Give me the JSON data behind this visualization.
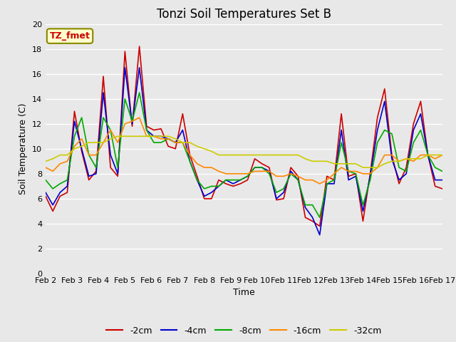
{
  "title": "Tonzi Soil Temperatures Set B",
  "xlabel": "Time",
  "ylabel": "Soil Temperature (C)",
  "annotation": "TZ_fmet",
  "ylim": [
    0,
    20
  ],
  "yticks": [
    0,
    2,
    4,
    6,
    8,
    10,
    12,
    14,
    16,
    18,
    20
  ],
  "x_labels": [
    "Feb 2",
    "Feb 3",
    "Feb 4",
    "Feb 5",
    "Feb 6",
    "Feb 7",
    "Feb 8",
    "Feb 9",
    "Feb 10",
    "Feb 11",
    "Feb 12",
    "Feb 13",
    "Feb 14",
    "Feb 15",
    "Feb 16",
    "Feb 17"
  ],
  "series_order": [
    "-2cm",
    "-4cm",
    "-8cm",
    "-16cm",
    "-32cm"
  ],
  "series": {
    "-2cm": {
      "color": "#cc0000",
      "lw": 1.2
    },
    "-4cm": {
      "color": "#0000cc",
      "lw": 1.2
    },
    "-8cm": {
      "color": "#00aa00",
      "lw": 1.2
    },
    "-16cm": {
      "color": "#ff8800",
      "lw": 1.2
    },
    "-32cm": {
      "color": "#cccc00",
      "lw": 1.2
    }
  },
  "data": {
    "-2cm": [
      6.2,
      5.0,
      6.2,
      6.5,
      13.0,
      9.8,
      7.5,
      8.2,
      15.8,
      8.5,
      7.8,
      17.8,
      11.8,
      18.2,
      11.8,
      11.5,
      11.6,
      10.2,
      10.0,
      12.8,
      9.5,
      7.8,
      6.0,
      6.0,
      7.5,
      7.2,
      7.0,
      7.2,
      7.5,
      9.2,
      8.8,
      8.5,
      5.9,
      6.0,
      8.5,
      7.8,
      4.5,
      4.2,
      3.8,
      7.8,
      7.5,
      12.8,
      7.8,
      8.0,
      4.2,
      8.0,
      12.5,
      14.8,
      9.5,
      7.2,
      8.5,
      12.0,
      13.8,
      9.5,
      7.0,
      6.8
    ],
    "-4cm": [
      6.5,
      5.5,
      6.5,
      7.0,
      12.2,
      10.0,
      7.8,
      8.0,
      14.5,
      9.5,
      8.0,
      16.5,
      12.0,
      16.5,
      11.5,
      11.0,
      11.0,
      10.8,
      10.5,
      11.5,
      9.0,
      7.5,
      6.2,
      6.5,
      7.0,
      7.5,
      7.2,
      7.5,
      7.8,
      8.5,
      8.5,
      8.2,
      6.0,
      6.5,
      8.2,
      7.5,
      5.3,
      4.5,
      3.1,
      7.2,
      7.2,
      11.5,
      7.5,
      7.8,
      5.0,
      7.8,
      11.5,
      13.8,
      9.2,
      7.5,
      8.0,
      11.5,
      12.8,
      9.5,
      7.5,
      7.5
    ],
    "-8cm": [
      7.5,
      6.8,
      7.2,
      7.5,
      11.0,
      12.5,
      9.5,
      8.5,
      12.5,
      11.5,
      8.5,
      14.0,
      12.2,
      14.5,
      11.5,
      10.5,
      10.5,
      10.8,
      10.5,
      10.5,
      9.0,
      7.5,
      6.8,
      7.0,
      7.0,
      7.5,
      7.5,
      7.5,
      7.8,
      8.5,
      8.5,
      8.0,
      6.5,
      6.8,
      8.0,
      7.5,
      5.5,
      5.5,
      4.5,
      7.2,
      7.5,
      10.5,
      8.2,
      8.0,
      5.5,
      7.5,
      10.5,
      11.5,
      11.2,
      8.5,
      8.2,
      10.5,
      11.5,
      9.5,
      8.5,
      8.2
    ],
    "-16cm": [
      8.5,
      8.2,
      8.8,
      9.0,
      10.2,
      10.8,
      9.5,
      9.5,
      10.5,
      11.5,
      10.5,
      12.0,
      12.2,
      12.5,
      11.0,
      11.0,
      10.8,
      10.8,
      10.5,
      10.5,
      9.5,
      8.8,
      8.5,
      8.5,
      8.2,
      8.0,
      8.0,
      8.0,
      8.0,
      8.2,
      8.2,
      8.2,
      7.8,
      7.8,
      8.0,
      7.8,
      7.5,
      7.5,
      7.2,
      7.5,
      8.0,
      8.5,
      8.2,
      8.2,
      8.0,
      8.0,
      8.5,
      9.5,
      9.5,
      9.0,
      9.2,
      9.0,
      9.5,
      9.5,
      9.2,
      9.5
    ],
    "-32cm": [
      9.0,
      9.2,
      9.5,
      9.5,
      10.0,
      10.2,
      10.5,
      10.5,
      10.5,
      10.8,
      11.0,
      11.0,
      11.0,
      11.0,
      11.0,
      11.0,
      11.0,
      11.0,
      10.8,
      10.5,
      10.5,
      10.2,
      10.0,
      9.8,
      9.5,
      9.5,
      9.5,
      9.5,
      9.5,
      9.5,
      9.5,
      9.5,
      9.5,
      9.5,
      9.5,
      9.5,
      9.2,
      9.0,
      9.0,
      9.0,
      8.8,
      8.8,
      8.8,
      8.8,
      8.5,
      8.5,
      8.5,
      8.8,
      9.0,
      9.0,
      9.2,
      9.2,
      9.2,
      9.5,
      9.5,
      9.5
    ]
  },
  "background_color": "#e8e8e8",
  "plot_bg_color": "#e8e8e8",
  "grid_color": "#ffffff",
  "title_fontsize": 12,
  "axis_label_fontsize": 9,
  "tick_fontsize": 8,
  "legend_fontsize": 9,
  "annotation_color": "#cc0000",
  "annotation_bg": "#ffffcc",
  "annotation_border": "#888800",
  "figsize": [
    6.4,
    4.8
  ],
  "dpi": 100
}
